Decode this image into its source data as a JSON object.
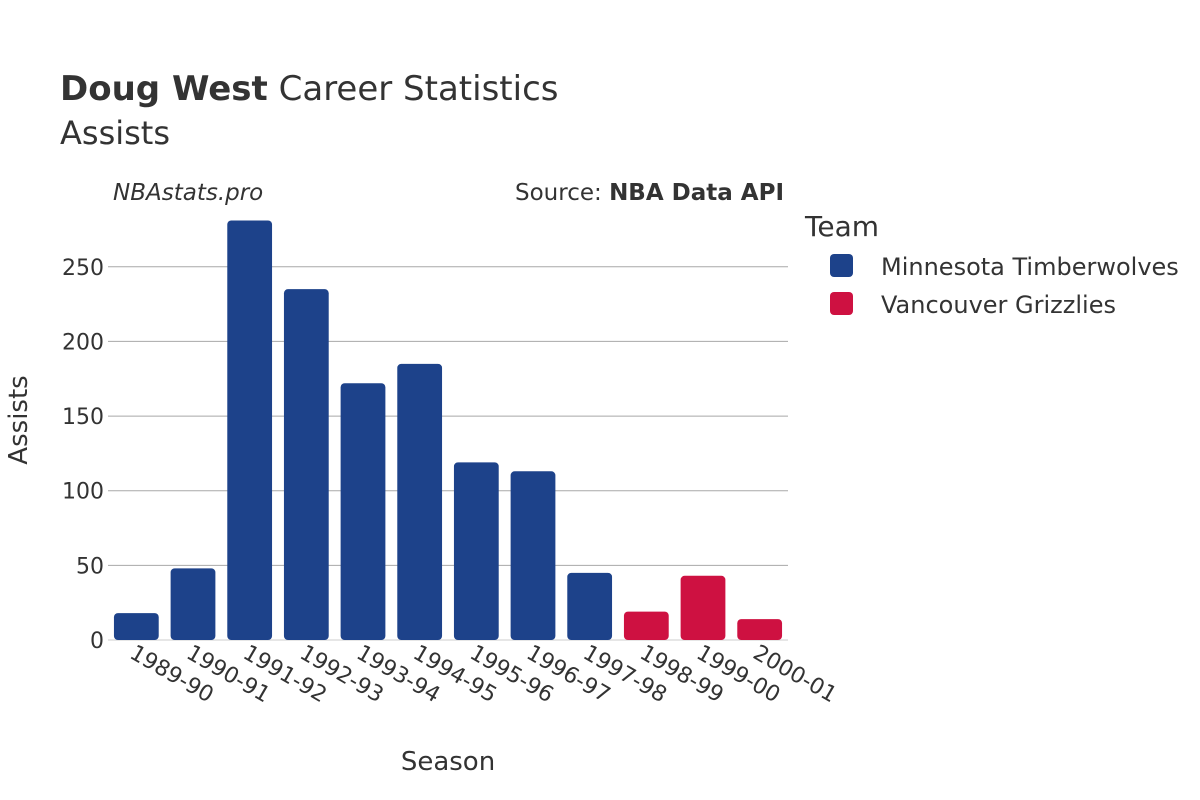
{
  "header": {
    "title_bold": "Doug West",
    "title_rest": " Career Statistics",
    "subtitle": "Assists"
  },
  "watermark": "NBAstats.pro",
  "source": {
    "prefix": "Source: ",
    "name": "NBA Data API"
  },
  "legend": {
    "title": "Team",
    "items": [
      {
        "label": "Minnesota Timberwolves",
        "color": "#1d428a"
      },
      {
        "label": "Vancouver Grizzlies",
        "color": "#ce1141"
      }
    ]
  },
  "chart_data": {
    "type": "bar",
    "xlabel": "Season",
    "ylabel": "Assists",
    "ylim": [
      0,
      280
    ],
    "yticks": [
      0,
      50,
      100,
      150,
      200,
      250
    ],
    "grid": true,
    "legend_position": "right",
    "categories": [
      "1989-90",
      "1990-91",
      "1991-92",
      "1992-93",
      "1993-94",
      "1994-95",
      "1995-96",
      "1996-97",
      "1997-98",
      "1998-99",
      "1999-00",
      "2000-01"
    ],
    "series": [
      {
        "name": "Minnesota Timberwolves",
        "color": "#1d428a",
        "values": [
          18,
          48,
          281,
          235,
          172,
          185,
          119,
          113,
          45,
          null,
          null,
          null
        ]
      },
      {
        "name": "Vancouver Grizzlies",
        "color": "#ce1141",
        "values": [
          null,
          null,
          null,
          null,
          null,
          null,
          null,
          null,
          null,
          19,
          43,
          14
        ]
      }
    ]
  }
}
